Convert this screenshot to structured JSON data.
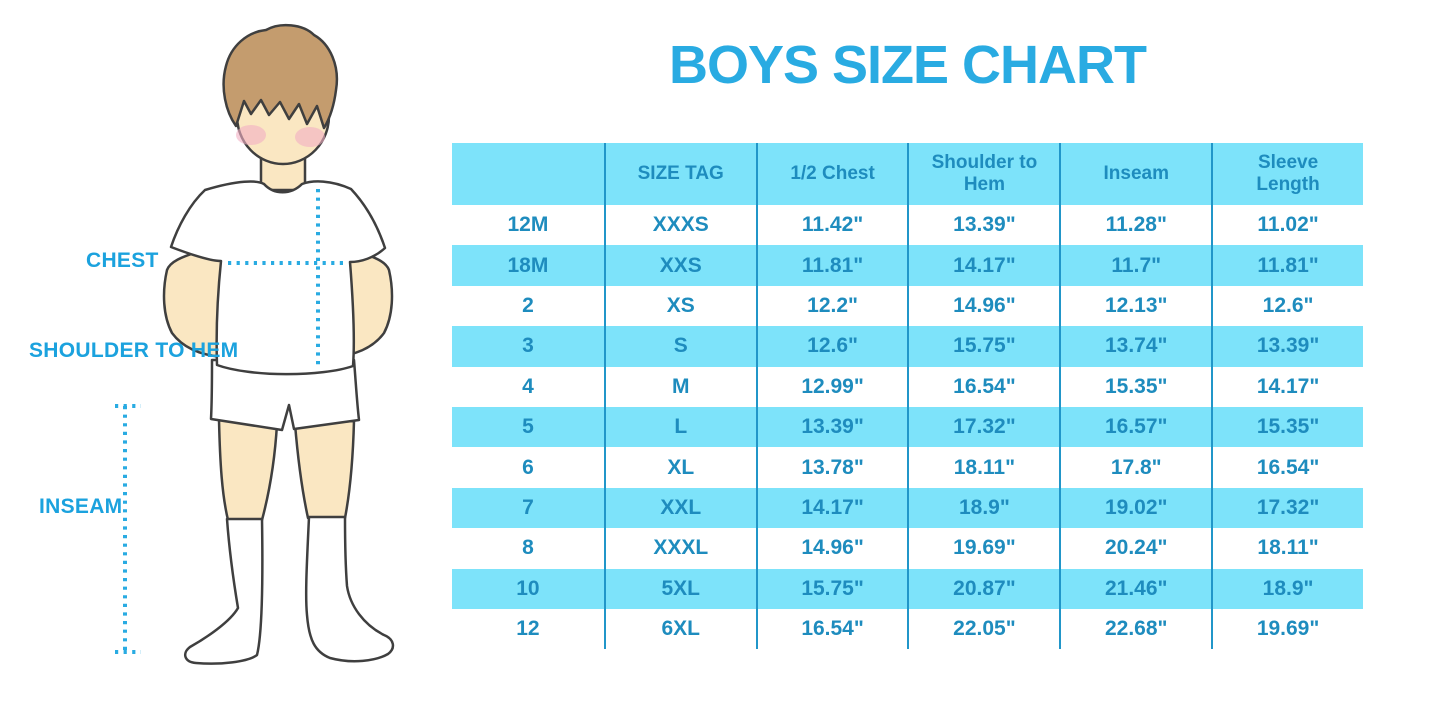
{
  "title": "BOYS SIZE CHART",
  "illustration": {
    "labels": {
      "chest": "CHEST",
      "shoulder_to_hem": "SHOULDER TO HEM",
      "inseam": "INSEAM"
    }
  },
  "chart_data": {
    "type": "table",
    "title": "BOYS SIZE CHART",
    "columns": [
      "",
      "SIZE TAG",
      "1/2 Chest",
      "Shoulder to Hem",
      "Inseam",
      "Sleeve Length"
    ],
    "rows": [
      [
        "12M",
        "XXXS",
        "11.42\"",
        "13.39\"",
        "11.28\"",
        "11.02\""
      ],
      [
        "18M",
        "XXS",
        "11.81\"",
        "14.17\"",
        "11.7\"",
        "11.81\""
      ],
      [
        "2",
        "XS",
        "12.2\"",
        "14.96\"",
        "12.13\"",
        "12.6\""
      ],
      [
        "3",
        "S",
        "12.6\"",
        "15.75\"",
        "13.74\"",
        "13.39\""
      ],
      [
        "4",
        "M",
        "12.99\"",
        "16.54\"",
        "15.35\"",
        "14.17\""
      ],
      [
        "5",
        "L",
        "13.39\"",
        "17.32\"",
        "16.57\"",
        "15.35\""
      ],
      [
        "6",
        "XL",
        "13.78\"",
        "18.11\"",
        "17.8\"",
        "16.54\""
      ],
      [
        "7",
        "XXL",
        "14.17\"",
        "18.9\"",
        "19.02\"",
        "17.32\""
      ],
      [
        "8",
        "XXXL",
        "14.96\"",
        "19.69\"",
        "20.24\"",
        "18.11\""
      ],
      [
        "10",
        "5XL",
        "15.75\"",
        "20.87\"",
        "21.46\"",
        "18.9\""
      ],
      [
        "12",
        "6XL",
        "16.54\"",
        "22.05\"",
        "22.68\"",
        "19.69\""
      ]
    ],
    "layout": {
      "header_row_shaded": true,
      "alternating_rows": "white/cyan starting white",
      "grid": "vertical dividers only"
    }
  },
  "colors": {
    "accent_blue": "#29ABE2",
    "label_text": "#1BA2DE",
    "dotted_line": "#29ABE2",
    "table_text": "#1E8CBE",
    "table_fill": "#7DE3FA",
    "table_divider": "#2196C9",
    "row_white": "#FFFFFF",
    "skin": "#FAE7C2",
    "hair": "#C49C6E",
    "blush": "#F2AFC3",
    "outline": "#3F3F3F",
    "garment_white": "#FFFFFF"
  }
}
